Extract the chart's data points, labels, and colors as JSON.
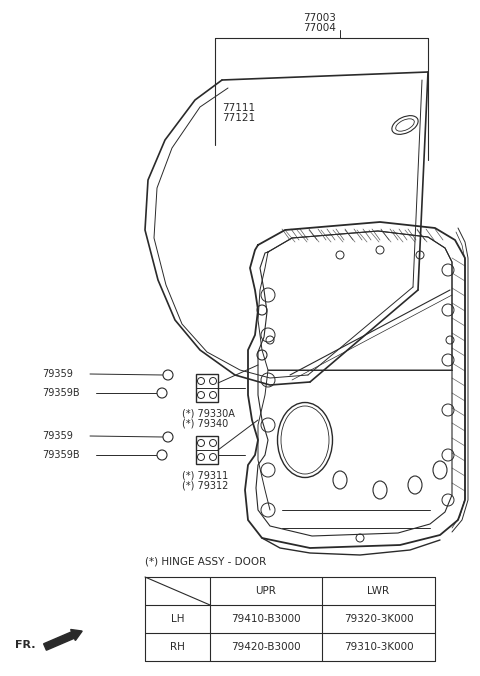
{
  "bg_color": "#ffffff",
  "line_color": "#2a2a2a",
  "text_color": "#2a2a2a",
  "title": "(*) HINGE ASSY - DOOR",
  "table_headers": [
    "",
    "UPR",
    "LWR"
  ],
  "table_rows": [
    [
      "LH",
      "79410-B3000",
      "79320-3K000"
    ],
    [
      "RH",
      "79420-B3000",
      "79310-3K000"
    ]
  ],
  "fig_width": 4.8,
  "fig_height": 6.76,
  "dpi": 100,
  "label_77003": "77003",
  "label_77004": "77004",
  "label_77111": "77111",
  "label_77121": "77121",
  "label_79359": "79359",
  "label_79359B": "79359B",
  "label_79330A": "(*) 79330A",
  "label_79340": "(*) 79340",
  "label_79311": "(*) 79311",
  "label_79312": "(*) 79312",
  "label_FR": "FR."
}
